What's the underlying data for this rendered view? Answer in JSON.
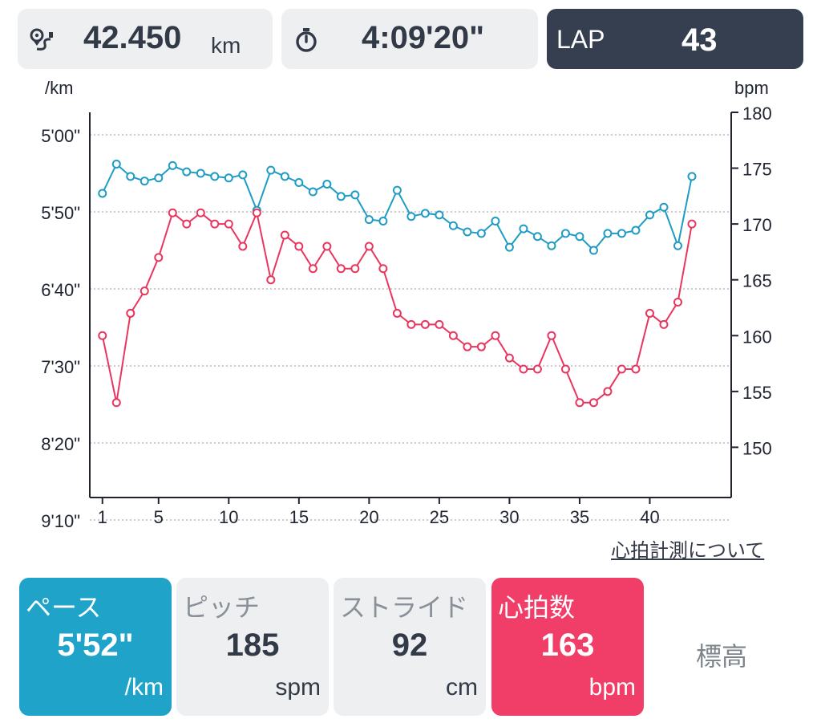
{
  "header": {
    "distance": {
      "icon": "route-pin-icon",
      "value": "42.450",
      "unit": "km"
    },
    "time": {
      "icon": "stopwatch-icon",
      "value": "4:09'20\""
    },
    "lap": {
      "label": "LAP",
      "value": "43"
    }
  },
  "chart_data": {
    "type": "line",
    "x_label": "",
    "left_axis": {
      "unit": "/km",
      "ticks": [
        "5'00\"",
        "5'50\"",
        "6'40\"",
        "7'30\"",
        "8'20\"",
        "9'10\""
      ],
      "range_seconds": [
        300,
        550
      ]
    },
    "right_axis": {
      "unit": "bpm",
      "ticks": [
        "180",
        "175",
        "170",
        "165",
        "160",
        "155",
        "150"
      ],
      "range": [
        145.5,
        180
      ]
    },
    "x_ticks": [
      "1",
      "5",
      "10",
      "15",
      "20",
      "25",
      "30",
      "35",
      "40"
    ],
    "x_range": [
      0.1,
      45.8
    ],
    "series": [
      {
        "metric": "pace",
        "axis": "left",
        "color": "#1f9cc4",
        "x": [
          1,
          2,
          3,
          4,
          5,
          6,
          7,
          8,
          9,
          10,
          11,
          12,
          13,
          14,
          15,
          16,
          17,
          18,
          19,
          20,
          21,
          22,
          23,
          24,
          25,
          26,
          27,
          28,
          29,
          30,
          31,
          32,
          33,
          34,
          35,
          36,
          37,
          38,
          39,
          40,
          41,
          42,
          43
        ],
        "values": [
          338,
          319,
          327,
          330,
          328,
          320,
          324,
          325,
          327,
          328,
          326,
          349,
          323,
          327,
          331,
          337,
          332,
          340,
          339,
          355,
          356,
          336,
          353,
          351,
          352,
          359,
          363,
          364,
          356,
          373,
          361,
          366,
          372,
          364,
          366,
          375,
          364,
          364,
          362,
          352,
          347,
          372,
          327
        ]
      },
      {
        "metric": "heart_rate",
        "axis": "right",
        "color": "#e8365e",
        "x": [
          1,
          2,
          3,
          4,
          5,
          6,
          7,
          8,
          9,
          10,
          11,
          12,
          13,
          14,
          15,
          16,
          17,
          18,
          19,
          20,
          21,
          22,
          23,
          24,
          25,
          26,
          27,
          28,
          29,
          30,
          31,
          32,
          33,
          34,
          35,
          36,
          37,
          38,
          39,
          40,
          41,
          42,
          43
        ],
        "values": [
          160,
          154,
          162,
          164,
          167,
          171,
          170,
          171,
          170,
          170,
          168,
          171,
          165,
          169,
          168,
          166,
          168,
          166,
          166,
          168,
          166,
          162,
          161,
          161,
          161,
          160,
          159,
          159,
          160,
          158,
          157,
          157,
          160,
          157,
          154,
          154,
          155,
          157,
          157,
          162,
          161,
          163,
          170
        ]
      }
    ]
  },
  "link": "心拍計測について",
  "metrics": {
    "pace": {
      "label": "ペース",
      "value": "5'52\"",
      "unit": "/km"
    },
    "pitch": {
      "label": "ピッチ",
      "value": "185",
      "unit": "spm"
    },
    "stride": {
      "label": "ストライド",
      "value": "92",
      "unit": "cm"
    },
    "heart_rate": {
      "label": "心拍数",
      "value": "163",
      "unit": "bpm"
    },
    "altitude": {
      "label": "標高"
    }
  }
}
